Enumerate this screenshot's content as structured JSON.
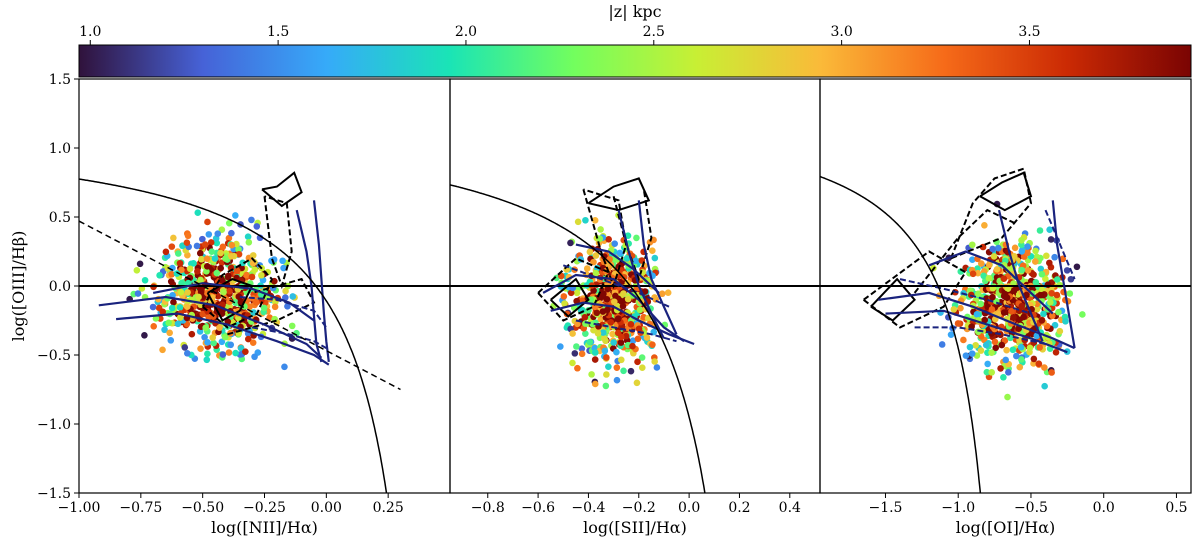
{
  "colorbar": {
    "label": "|z| kpc",
    "ticks": [
      1.0,
      1.5,
      2.0,
      2.5,
      3.0,
      3.5
    ],
    "tick_labels": [
      "1.0",
      "1.5",
      "2.0",
      "2.5",
      "3.0",
      "3.5"
    ],
    "range": [
      0.97,
      3.93
    ],
    "colormap": "turbo",
    "colormap_stops": [
      "#30123b",
      "#4662d7",
      "#36aaf9",
      "#1ae4b6",
      "#72fe5e",
      "#c8ef34",
      "#faba39",
      "#f66b19",
      "#cb2a04",
      "#7a0403"
    ]
  },
  "chart_data": [
    {
      "type": "scatter",
      "xlabel": "log([NII]/Hα)",
      "ylabel": "log([OIII]/Hβ)",
      "xlim": [
        -1.0,
        0.5
      ],
      "ylim": [
        -1.5,
        1.5
      ],
      "xticks": [
        -1.0,
        -0.75,
        -0.5,
        -0.25,
        0.0,
        0.25
      ],
      "xtick_labels": [
        "−1.00",
        "−0.75",
        "−0.50",
        "−0.25",
        "0.00",
        "0.25"
      ],
      "yticks": [
        -1.5,
        -1.0,
        -0.5,
        0.0,
        0.5,
        1.0,
        1.5
      ],
      "ytick_labels": [
        "−1.5",
        "−1.0",
        "−0.5",
        "0.0",
        "0.5",
        "1.0",
        "1.5"
      ],
      "cloud": {
        "cx": -0.44,
        "cy": -0.05,
        "sx": 0.17,
        "sy": 0.3,
        "xmin": -1.0,
        "xmax": 0.08,
        "n": 620
      },
      "demarcations": [
        {
          "name": "kewley",
          "style": "solid",
          "a": 0.61,
          "b": 0.47,
          "c": 1.19,
          "xmin": -1.0,
          "xmax": 0.4
        },
        {
          "name": "kauffmann-line",
          "style": "dashed",
          "points": [
            [
              -1.0,
              0.47
            ],
            [
              0.3,
              -0.75
            ]
          ]
        }
      ],
      "hline": 0.0,
      "navy_models": [
        [
          [
            -0.92,
            -0.14
          ],
          [
            -0.65,
            -0.08
          ],
          [
            -0.45,
            -0.14
          ],
          [
            -0.25,
            -0.28
          ],
          [
            -0.08,
            -0.42
          ],
          [
            -0.02,
            -0.52
          ]
        ],
        [
          [
            -0.85,
            -0.24
          ],
          [
            -0.6,
            -0.2
          ],
          [
            -0.4,
            -0.28
          ],
          [
            -0.2,
            -0.4
          ],
          [
            -0.05,
            -0.5
          ],
          [
            0.01,
            -0.57
          ]
        ],
        [
          [
            -0.12,
            0.55
          ],
          [
            -0.08,
            0.25
          ],
          [
            -0.06,
            0.0
          ],
          [
            -0.05,
            -0.22
          ],
          [
            -0.04,
            -0.42
          ],
          [
            -0.02,
            -0.55
          ]
        ],
        [
          [
            -0.05,
            0.62
          ],
          [
            -0.03,
            0.3
          ],
          [
            -0.02,
            0.05
          ],
          [
            -0.01,
            -0.2
          ],
          [
            0.0,
            -0.4
          ],
          [
            0.01,
            -0.55
          ]
        ],
        [
          [
            -0.7,
            -0.05
          ],
          [
            -0.5,
            0.02
          ],
          [
            -0.3,
            -0.02
          ],
          [
            -0.15,
            -0.12
          ],
          [
            -0.05,
            -0.25
          ]
        ]
      ],
      "black_models": [
        [
          [
            -0.48,
            -0.05
          ],
          [
            -0.42,
            -0.25
          ],
          [
            -0.35,
            -0.18
          ],
          [
            -0.3,
            0.0
          ],
          [
            -0.38,
            0.05
          ],
          [
            -0.48,
            -0.05
          ]
        ],
        [
          [
            -0.26,
            0.7
          ],
          [
            -0.2,
            0.72
          ],
          [
            -0.13,
            0.82
          ],
          [
            -0.1,
            0.68
          ],
          [
            -0.18,
            0.58
          ],
          [
            -0.26,
            0.7
          ]
        ]
      ],
      "dashed_models": [
        [
          [
            -0.5,
            -0.15
          ],
          [
            -0.4,
            -0.3
          ],
          [
            -0.28,
            -0.2
          ],
          [
            -0.22,
            0.05
          ],
          [
            -0.3,
            0.2
          ],
          [
            -0.42,
            0.08
          ],
          [
            -0.5,
            -0.15
          ]
        ],
        [
          [
            -0.25,
            0.65
          ],
          [
            -0.22,
            0.2
          ],
          [
            -0.18,
            0.0
          ],
          [
            -0.14,
            0.25
          ],
          [
            -0.16,
            0.6
          ],
          [
            -0.25,
            0.65
          ]
        ],
        [
          [
            -0.4,
            -0.35
          ],
          [
            -0.2,
            -0.25
          ],
          [
            -0.05,
            -0.12
          ],
          [
            -0.1,
            0.05
          ],
          [
            -0.3,
            -0.05
          ]
        ]
      ],
      "navy_dashed_models": [
        [
          [
            -0.35,
            -0.08
          ],
          [
            -0.2,
            -0.1
          ],
          [
            -0.05,
            -0.18
          ],
          [
            0.0,
            -0.3
          ]
        ],
        [
          [
            -0.3,
            -0.3
          ],
          [
            -0.15,
            -0.35
          ],
          [
            -0.05,
            -0.4
          ],
          [
            0.0,
            -0.45
          ]
        ]
      ]
    },
    {
      "type": "scatter",
      "xlabel": "log([SII]/Hα)",
      "ylabel": "",
      "xlim": [
        -0.95,
        0.52
      ],
      "ylim": [
        -1.5,
        1.5
      ],
      "xticks": [
        -0.8,
        -0.6,
        -0.4,
        -0.2,
        0.0,
        0.2,
        0.4
      ],
      "xtick_labels": [
        "−0.8",
        "−0.6",
        "−0.4",
        "−0.2",
        "0.0",
        "0.2",
        "0.4"
      ],
      "cloud": {
        "cx": -0.3,
        "cy": -0.1,
        "sx": 0.12,
        "sy": 0.32,
        "xmin": -0.7,
        "xmax": 0.1,
        "n": 600
      },
      "demarcations": [
        {
          "name": "kewley",
          "style": "solid",
          "a": 0.72,
          "b": 0.32,
          "c": 1.3,
          "xmin": -0.95,
          "xmax": 0.3
        }
      ],
      "hline": 0.0,
      "navy_models": [
        [
          [
            -0.58,
            -0.05
          ],
          [
            -0.45,
            0.08
          ],
          [
            -0.3,
            0.05
          ],
          [
            -0.2,
            -0.1
          ],
          [
            -0.1,
            -0.3
          ],
          [
            -0.02,
            -0.4
          ]
        ],
        [
          [
            -0.55,
            -0.18
          ],
          [
            -0.42,
            -0.12
          ],
          [
            -0.3,
            -0.15
          ],
          [
            -0.2,
            -0.25
          ],
          [
            -0.08,
            -0.35
          ],
          [
            0.02,
            -0.42
          ]
        ],
        [
          [
            -0.28,
            0.55
          ],
          [
            -0.24,
            0.25
          ],
          [
            -0.2,
            0.0
          ],
          [
            -0.15,
            -0.2
          ],
          [
            -0.1,
            -0.38
          ]
        ],
        [
          [
            -0.2,
            0.62
          ],
          [
            -0.18,
            0.3
          ],
          [
            -0.15,
            0.05
          ],
          [
            -0.1,
            -0.15
          ],
          [
            -0.05,
            -0.35
          ]
        ],
        [
          [
            -0.45,
            0.3
          ],
          [
            -0.32,
            0.25
          ],
          [
            -0.22,
            0.12
          ],
          [
            -0.12,
            -0.05
          ]
        ]
      ],
      "black_models": [
        [
          [
            -0.55,
            -0.1
          ],
          [
            -0.48,
            -0.22
          ],
          [
            -0.4,
            -0.1
          ],
          [
            -0.45,
            0.05
          ],
          [
            -0.55,
            -0.1
          ]
        ],
        [
          [
            -0.4,
            0.6
          ],
          [
            -0.3,
            0.72
          ],
          [
            -0.2,
            0.78
          ],
          [
            -0.16,
            0.62
          ],
          [
            -0.28,
            0.55
          ],
          [
            -0.4,
            0.6
          ]
        ]
      ],
      "dashed_models": [
        [
          [
            -0.6,
            -0.05
          ],
          [
            -0.5,
            -0.25
          ],
          [
            -0.38,
            -0.15
          ],
          [
            -0.32,
            0.1
          ],
          [
            -0.45,
            0.2
          ],
          [
            -0.6,
            -0.05
          ]
        ],
        [
          [
            -0.42,
            0.7
          ],
          [
            -0.35,
            0.25
          ],
          [
            -0.3,
            0.0
          ],
          [
            -0.25,
            0.3
          ],
          [
            -0.28,
            0.62
          ],
          [
            -0.42,
            0.7
          ]
        ],
        [
          [
            -0.3,
            0.65
          ],
          [
            -0.25,
            0.3
          ],
          [
            -0.2,
            0.05
          ],
          [
            -0.15,
            0.35
          ],
          [
            -0.18,
            0.7
          ]
        ]
      ],
      "navy_dashed_models": [
        [
          [
            -0.5,
            0.15
          ],
          [
            -0.35,
            0.05
          ],
          [
            -0.2,
            -0.05
          ],
          [
            -0.08,
            -0.15
          ]
        ],
        [
          [
            -0.45,
            -0.25
          ],
          [
            -0.3,
            -0.3
          ],
          [
            -0.15,
            -0.35
          ],
          [
            -0.05,
            -0.4
          ]
        ]
      ]
    },
    {
      "type": "scatter",
      "xlabel": "log([OI]/Hα)",
      "ylabel": "",
      "xlim": [
        -1.95,
        0.6
      ],
      "ylim": [
        -1.5,
        1.5
      ],
      "xticks": [
        -1.5,
        -1.0,
        -0.5,
        0.0,
        0.5
      ],
      "xtick_labels": [
        "−1.5",
        "−1.0",
        "−0.5",
        "0.0",
        "0.5"
      ],
      "cloud": {
        "cx": -0.62,
        "cy": -0.12,
        "sx": 0.26,
        "sy": 0.32,
        "xmin": -1.5,
        "xmax": 0.3,
        "n": 620
      },
      "demarcations": [
        {
          "name": "kewley",
          "style": "solid",
          "a": 0.73,
          "b": -0.59,
          "c": 1.33,
          "xmin": -1.95,
          "xmax": -0.8
        }
      ],
      "hline": 0.0,
      "navy_models": [
        [
          [
            -1.55,
            -0.1
          ],
          [
            -1.2,
            -0.05
          ],
          [
            -0.9,
            -0.15
          ],
          [
            -0.6,
            -0.28
          ],
          [
            -0.35,
            -0.38
          ],
          [
            -0.2,
            -0.45
          ]
        ],
        [
          [
            -1.5,
            -0.2
          ],
          [
            -1.1,
            -0.18
          ],
          [
            -0.8,
            -0.28
          ],
          [
            -0.5,
            -0.38
          ],
          [
            -0.25,
            -0.48
          ]
        ],
        [
          [
            -0.72,
            0.55
          ],
          [
            -0.65,
            0.25
          ],
          [
            -0.58,
            0.0
          ],
          [
            -0.5,
            -0.2
          ],
          [
            -0.42,
            -0.4
          ]
        ],
        [
          [
            -0.35,
            0.62
          ],
          [
            -0.32,
            0.3
          ],
          [
            -0.28,
            0.05
          ],
          [
            -0.24,
            -0.2
          ],
          [
            -0.2,
            -0.45
          ]
        ],
        [
          [
            -1.2,
            0.15
          ],
          [
            -0.95,
            0.25
          ],
          [
            -0.7,
            0.15
          ],
          [
            -0.5,
            -0.05
          ],
          [
            -0.35,
            -0.2
          ]
        ]
      ],
      "black_models": [
        [
          [
            -1.6,
            -0.15
          ],
          [
            -1.45,
            -0.25
          ],
          [
            -1.3,
            -0.1
          ],
          [
            -1.42,
            0.05
          ],
          [
            -1.6,
            -0.15
          ]
        ],
        [
          [
            -0.85,
            0.65
          ],
          [
            -0.7,
            0.75
          ],
          [
            -0.55,
            0.82
          ],
          [
            -0.5,
            0.65
          ],
          [
            -0.68,
            0.55
          ],
          [
            -0.85,
            0.65
          ]
        ]
      ],
      "dashed_models": [
        [
          [
            -1.65,
            -0.1
          ],
          [
            -1.4,
            -0.3
          ],
          [
            -1.1,
            -0.15
          ],
          [
            -0.95,
            0.1
          ],
          [
            -1.2,
            0.25
          ],
          [
            -1.65,
            -0.1
          ]
        ],
        [
          [
            -1.05,
            0.2
          ],
          [
            -0.9,
            0.6
          ],
          [
            -0.75,
            0.78
          ],
          [
            -0.55,
            0.85
          ],
          [
            -0.5,
            0.6
          ],
          [
            -0.7,
            0.35
          ],
          [
            -1.05,
            0.2
          ]
        ],
        [
          [
            -1.3,
            -0.05
          ],
          [
            -1.0,
            0.35
          ],
          [
            -0.8,
            0.55
          ],
          [
            -0.6,
            0.45
          ]
        ]
      ],
      "navy_dashed_models": [
        [
          [
            -1.4,
            0.05
          ],
          [
            -1.1,
            -0.02
          ],
          [
            -0.8,
            -0.1
          ],
          [
            -0.5,
            -0.2
          ]
        ],
        [
          [
            -1.3,
            -0.3
          ],
          [
            -1.0,
            -0.3
          ],
          [
            -0.7,
            -0.35
          ],
          [
            -0.4,
            -0.42
          ]
        ],
        [
          [
            -0.4,
            0.55
          ],
          [
            -0.3,
            0.3
          ],
          [
            -0.2,
            0.05
          ]
        ]
      ]
    }
  ]
}
